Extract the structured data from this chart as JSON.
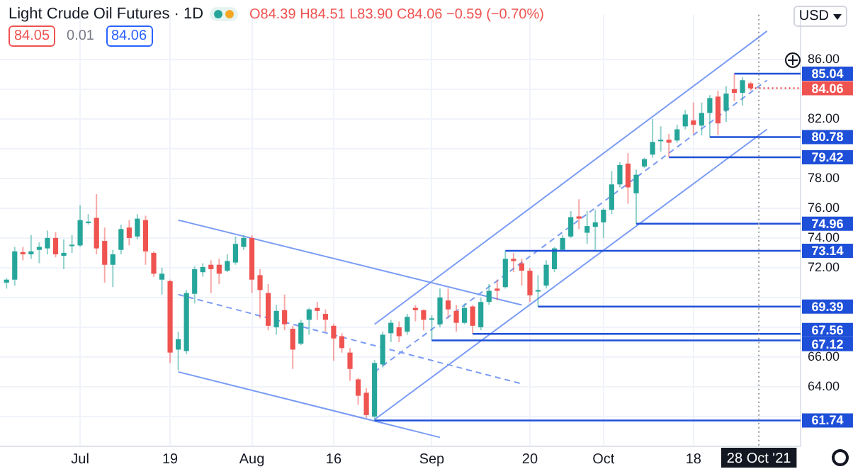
{
  "chart_data": {
    "type": "candlestick",
    "title": "Light Crude Oil Futures · 1D",
    "subtitle": "O84.39 H84.51 L83.90 C84.06 −0.59 (−0.70%)",
    "annotations": [
      "84.05",
      "0.01",
      "84.06",
      "USD"
    ],
    "categories": [
      null,
      null,
      null,
      null,
      null,
      null,
      null,
      null,
      null,
      "Jul",
      null,
      null,
      null,
      null,
      null,
      null,
      null,
      null,
      null,
      null,
      "19",
      null,
      null,
      null,
      null,
      null,
      null,
      null,
      null,
      null,
      "Aug",
      null,
      null,
      null,
      null,
      null,
      null,
      null,
      null,
      null,
      "16",
      null,
      null,
      null,
      null,
      null,
      null,
      null,
      null,
      null,
      null,
      null,
      "Sep",
      null,
      null,
      null,
      null,
      null,
      null,
      null,
      null,
      null,
      null,
      null,
      "20",
      null,
      null,
      null,
      null,
      null,
      null,
      null,
      null,
      "Oct",
      null,
      null,
      null,
      null,
      null,
      null,
      null,
      null,
      null,
      null,
      "18",
      null,
      null,
      null,
      null,
      null,
      null,
      null,
      "28 Oct '21",
      null,
      null,
      null,
      null,
      null
    ],
    "ohlc": [
      [
        71.0,
        71.3,
        70.6,
        71.2
      ],
      [
        71.2,
        73.4,
        70.8,
        73.1
      ],
      [
        73.05,
        73.4,
        72.5,
        72.9
      ],
      [
        72.9,
        74.2,
        72.6,
        73.1
      ],
      [
        73.2,
        73.7,
        72.3,
        73.4
      ],
      [
        73.3,
        74.5,
        72.9,
        74.0
      ],
      [
        74.0,
        74.4,
        72.7,
        72.9
      ],
      [
        72.8,
        73.9,
        71.9,
        73.0
      ],
      [
        73.45,
        74.2,
        73.0,
        73.55
      ],
      [
        73.5,
        76.2,
        73.4,
        75.2
      ],
      [
        75.0,
        75.6,
        74.9,
        75.1
      ],
      [
        75.35,
        76.95,
        72.9,
        73.3
      ],
      [
        73.8,
        74.7,
        71.0,
        72.2
      ],
      [
        72.2,
        73.2,
        70.7,
        72.9
      ],
      [
        73.2,
        74.9,
        72.9,
        74.6
      ],
      [
        74.7,
        75.2,
        73.5,
        74.0
      ],
      [
        74.1,
        75.6,
        73.9,
        75.3
      ],
      [
        75.2,
        75.5,
        72.2,
        73.1
      ],
      [
        73.0,
        73.1,
        71.4,
        71.6
      ],
      [
        71.2,
        72.0,
        70.2,
        71.6
      ],
      [
        71.1,
        71.2,
        65.6,
        66.3
      ],
      [
        66.5,
        67.7,
        65.1,
        67.2
      ],
      [
        66.4,
        70.5,
        66.2,
        70.3
      ],
      [
        70.25,
        72.1,
        69.6,
        71.9
      ],
      [
        71.7,
        72.3,
        71.4,
        72.05
      ],
      [
        72.2,
        72.5,
        70.3,
        71.9
      ],
      [
        72.2,
        72.6,
        70.9,
        71.6
      ],
      [
        71.8,
        72.9,
        71.7,
        72.45
      ],
      [
        72.35,
        74.1,
        72.2,
        73.6
      ],
      [
        73.4,
        74.2,
        73.2,
        74.0
      ],
      [
        74.0,
        74.2,
        70.3,
        71.2
      ],
      [
        71.5,
        71.9,
        68.6,
        70.5
      ],
      [
        70.3,
        70.9,
        67.8,
        68.1
      ],
      [
        68.0,
        69.5,
        67.5,
        69.1
      ],
      [
        69.15,
        70.2,
        67.8,
        68.2
      ],
      [
        67.9,
        68.1,
        65.2,
        66.5
      ],
      [
        66.9,
        68.5,
        66.8,
        68.3
      ],
      [
        68.5,
        69.3,
        67.5,
        69.2
      ],
      [
        69.3,
        69.7,
        68.5,
        69.1
      ],
      [
        68.9,
        69.2,
        67.7,
        68.5
      ],
      [
        68.1,
        68.25,
        65.75,
        67.25
      ],
      [
        67.4,
        67.6,
        66.3,
        66.6
      ],
      [
        66.3,
        66.6,
        64.4,
        65.2
      ],
      [
        64.5,
        64.6,
        62.8,
        63.4
      ],
      [
        63.6,
        63.9,
        61.9,
        62.1
      ],
      [
        62.0,
        65.8,
        61.74,
        65.6
      ],
      [
        65.5,
        67.7,
        65.3,
        67.5
      ],
      [
        67.6,
        68.5,
        67.0,
        68.3
      ],
      [
        68.0,
        68.4,
        67.0,
        67.4
      ],
      [
        67.7,
        68.9,
        67.5,
        68.7
      ],
      [
        69.3,
        69.5,
        68.4,
        69.15
      ],
      [
        69.15,
        69.2,
        67.8,
        68.5
      ],
      [
        68.55,
        68.8,
        67.12,
        68.6
      ],
      [
        68.2,
        70.6,
        68.0,
        70.0
      ],
      [
        69.8,
        70.6,
        68.6,
        69.2
      ],
      [
        69.1,
        69.5,
        67.7,
        68.3
      ],
      [
        68.3,
        69.6,
        68.2,
        69.3
      ],
      [
        69.4,
        69.5,
        67.56,
        68.1
      ],
      [
        68.0,
        70.0,
        67.8,
        69.7
      ],
      [
        69.7,
        70.9,
        69.5,
        70.45
      ],
      [
        70.6,
        71.2,
        69.8,
        70.45
      ],
      [
        70.7,
        73.14,
        70.6,
        72.6
      ],
      [
        72.6,
        73.0,
        71.7,
        72.45
      ],
      [
        72.3,
        72.6,
        70.8,
        71.8
      ],
      [
        71.8,
        72.0,
        69.7,
        70.15
      ],
      [
        70.4,
        71.5,
        69.39,
        70.5
      ],
      [
        70.8,
        72.5,
        70.6,
        72.2
      ],
      [
        71.9,
        73.4,
        71.7,
        73.3
      ],
      [
        73.2,
        74.2,
        73.1,
        74.0
      ],
      [
        74.1,
        75.8,
        74.0,
        75.4
      ],
      [
        75.45,
        76.6,
        74.6,
        75.3
      ],
      [
        74.35,
        75.8,
        73.6,
        74.8
      ],
      [
        74.75,
        75.9,
        73.2,
        75.05
      ],
      [
        75.05,
        76.0,
        74.0,
        75.9
      ],
      [
        75.9,
        78.5,
        75.6,
        77.6
      ],
      [
        77.6,
        79.1,
        77.4,
        78.9
      ],
      [
        79.0,
        79.7,
        76.3,
        77.4
      ],
      [
        77.0,
        78.6,
        74.96,
        78.25
      ],
      [
        78.8,
        79.4,
        78.7,
        79.3
      ],
      [
        79.6,
        82.0,
        79.4,
        80.45
      ],
      [
        80.5,
        81.5,
        79.8,
        80.6
      ],
      [
        80.6,
        81.0,
        79.42,
        80.4
      ],
      [
        80.55,
        81.6,
        80.4,
        81.3
      ],
      [
        81.5,
        82.6,
        81.3,
        82.3
      ],
      [
        81.9,
        83.1,
        81.0,
        81.6
      ],
      [
        81.55,
        83.1,
        80.9,
        82.4
      ],
      [
        82.4,
        83.6,
        80.78,
        83.4
      ],
      [
        83.5,
        83.9,
        80.9,
        81.7
      ],
      [
        82.55,
        84.2,
        81.8,
        83.7
      ],
      [
        84.0,
        85.04,
        83.2,
        83.75
      ],
      [
        83.75,
        84.8,
        82.9,
        84.6
      ],
      [
        84.39,
        84.51,
        83.9,
        84.06
      ],
      null,
      null,
      null,
      null,
      null,
      null
    ],
    "series": [
      {
        "type": "line",
        "color": "#7b9cf5",
        "values": [
          null,
          null,
          null,
          null,
          null,
          null,
          null,
          null,
          null,
          null,
          null,
          null,
          null,
          null,
          null,
          null,
          null,
          null,
          null,
          null,
          null,
          75.2,
          null,
          null,
          null,
          null,
          null,
          null,
          null,
          null,
          null,
          null,
          null,
          null,
          null,
          null,
          null,
          null,
          null,
          null,
          null,
          null,
          null,
          null,
          null,
          null,
          null,
          null,
          null,
          null,
          null,
          null,
          null,
          null,
          null,
          null,
          null,
          null,
          null,
          null,
          null,
          null,
          null,
          69.5,
          null,
          null,
          null,
          null,
          null,
          null,
          null,
          null,
          null,
          null,
          null,
          null,
          null,
          null,
          null,
          null,
          null,
          null,
          null,
          null,
          null,
          null,
          null,
          null,
          null,
          null,
          null,
          null,
          null,
          null,
          null,
          null,
          null,
          null
        ]
      },
      {
        "type": "line",
        "color": "#7b9cf5",
        "line_style": "dashed",
        "values": [
          null,
          null,
          null,
          null,
          null,
          null,
          null,
          null,
          null,
          null,
          null,
          null,
          null,
          null,
          null,
          null,
          null,
          null,
          null,
          null,
          null,
          70.2,
          null,
          null,
          null,
          null,
          null,
          null,
          null,
          null,
          null,
          null,
          null,
          null,
          null,
          null,
          null,
          null,
          null,
          null,
          null,
          null,
          null,
          null,
          null,
          null,
          null,
          null,
          null,
          null,
          null,
          null,
          null,
          null,
          null,
          null,
          null,
          null,
          null,
          null,
          null,
          null,
          null,
          64.2,
          null,
          null,
          null,
          null,
          null,
          null,
          null,
          null,
          null,
          null,
          null,
          null,
          null,
          null,
          null,
          null,
          null,
          null,
          null,
          null,
          null,
          null,
          null,
          null,
          null,
          null,
          null,
          null,
          null,
          null,
          null,
          null,
          null,
          null
        ]
      },
      {
        "type": "line",
        "color": "#7b9cf5",
        "values": [
          null,
          null,
          null,
          null,
          null,
          null,
          null,
          null,
          null,
          null,
          null,
          null,
          null,
          null,
          null,
          null,
          null,
          null,
          null,
          null,
          null,
          65.0,
          null,
          null,
          null,
          null,
          null,
          null,
          null,
          null,
          null,
          null,
          null,
          null,
          null,
          null,
          null,
          null,
          null,
          null,
          null,
          null,
          null,
          null,
          null,
          null,
          null,
          null,
          null,
          null,
          null,
          null,
          null,
          60.6,
          null,
          null,
          null,
          null,
          null,
          null,
          null,
          null,
          null,
          null,
          null,
          null,
          null,
          null,
          null,
          null,
          null,
          null,
          null,
          null,
          null,
          null,
          null,
          null,
          null,
          null,
          null,
          null,
          null,
          null,
          null,
          null,
          null,
          null,
          null,
          null,
          null,
          null,
          null,
          null,
          null,
          null,
          null,
          null
        ]
      },
      {
        "type": "line",
        "color": "#7b9cf5",
        "values": [
          null,
          null,
          null,
          null,
          null,
          null,
          null,
          null,
          null,
          null,
          null,
          null,
          null,
          null,
          null,
          null,
          null,
          null,
          null,
          null,
          null,
          null,
          null,
          null,
          null,
          null,
          null,
          null,
          null,
          null,
          null,
          null,
          null,
          null,
          null,
          null,
          null,
          null,
          null,
          null,
          null,
          null,
          null,
          null,
          null,
          68.2,
          null,
          null,
          null,
          null,
          null,
          null,
          null,
          null,
          null,
          null,
          null,
          null,
          null,
          null,
          null,
          null,
          null,
          null,
          null,
          null,
          null,
          null,
          null,
          null,
          null,
          null,
          null,
          null,
          null,
          null,
          null,
          null,
          null,
          null,
          null,
          null,
          null,
          null,
          null,
          null,
          null,
          null,
          null,
          null,
          null,
          null,
          null,
          87.9,
          null,
          null,
          null,
          null
        ]
      },
      {
        "type": "line",
        "color": "#7b9cf5",
        "line_style": "dashed",
        "values": [
          null,
          null,
          null,
          null,
          null,
          null,
          null,
          null,
          null,
          null,
          null,
          null,
          null,
          null,
          null,
          null,
          null,
          null,
          null,
          null,
          null,
          null,
          null,
          null,
          null,
          null,
          null,
          null,
          null,
          null,
          null,
          null,
          null,
          null,
          null,
          null,
          null,
          null,
          null,
          null,
          null,
          null,
          null,
          null,
          null,
          65.0,
          null,
          null,
          null,
          null,
          null,
          null,
          null,
          null,
          null,
          null,
          null,
          null,
          null,
          null,
          null,
          null,
          null,
          null,
          null,
          null,
          null,
          null,
          null,
          null,
          null,
          null,
          null,
          null,
          null,
          null,
          null,
          null,
          null,
          null,
          null,
          null,
          null,
          null,
          null,
          null,
          null,
          null,
          null,
          null,
          null,
          null,
          null,
          84.6,
          null,
          null,
          null,
          null
        ]
      },
      {
        "type": "line",
        "color": "#7b9cf5",
        "values": [
          null,
          null,
          null,
          null,
          null,
          null,
          null,
          null,
          null,
          null,
          null,
          null,
          null,
          null,
          null,
          null,
          null,
          null,
          null,
          null,
          null,
          null,
          null,
          null,
          null,
          null,
          null,
          null,
          null,
          null,
          null,
          null,
          null,
          null,
          null,
          null,
          null,
          null,
          null,
          null,
          null,
          null,
          null,
          null,
          null,
          61.8,
          null,
          null,
          null,
          null,
          null,
          null,
          null,
          null,
          null,
          null,
          null,
          null,
          null,
          null,
          null,
          null,
          null,
          null,
          null,
          null,
          null,
          null,
          null,
          null,
          null,
          null,
          null,
          null,
          null,
          null,
          null,
          null,
          null,
          null,
          null,
          null,
          null,
          null,
          null,
          null,
          null,
          null,
          null,
          null,
          null,
          null,
          null,
          81.3,
          null,
          null,
          null,
          null
        ]
      }
    ],
    "ref_lines": [
      {
        "axis": "x",
        "value": "28 Oct '21",
        "color": "#9598a1",
        "line_style": "dotted"
      },
      {
        "axis": "y",
        "value": 85.04,
        "label": "85.04",
        "color": "#1e4fd8"
      },
      {
        "axis": "y",
        "value": 84.06,
        "label": "84.06",
        "color": "#ef5350",
        "line_style": "dotted"
      },
      {
        "axis": "y",
        "value": 80.78,
        "label": "80.78",
        "color": "#1e4fd8"
      },
      {
        "axis": "y",
        "value": 79.42,
        "label": "79.42",
        "color": "#1e4fd8"
      },
      {
        "axis": "y",
        "value": 74.96,
        "label": "74.96",
        "color": "#1e4fd8"
      },
      {
        "axis": "y",
        "value": 73.14,
        "label": "73.14",
        "color": "#1e4fd8"
      },
      {
        "axis": "y",
        "value": 69.39,
        "label": "69.39",
        "color": "#1e4fd8"
      },
      {
        "axis": "y",
        "value": 67.56,
        "label": "67.56",
        "color": "#1e4fd8"
      },
      {
        "axis": "y",
        "value": 67.12,
        "label": "67.12",
        "color": "#1e4fd8"
      },
      {
        "axis": "y",
        "value": 61.74,
        "label": "61.74",
        "color": "#1e4fd8"
      }
    ],
    "ylim": [
      60,
      89
    ],
    "yticks": [
      {
        "value": 62,
        "label": null
      },
      {
        "value": 64,
        "label": "64.00"
      },
      {
        "value": 66,
        "label": "66.00"
      },
      {
        "value": 68,
        "label": null
      },
      {
        "value": 70,
        "label": null
      },
      {
        "value": 72,
        "label": "72.00"
      },
      {
        "value": 74,
        "label": "74.00"
      },
      {
        "value": 76,
        "label": "76.00"
      },
      {
        "value": 78,
        "label": "78.00"
      },
      {
        "value": 80,
        "label": null
      },
      {
        "value": 82,
        "label": "82.00"
      },
      {
        "value": 84,
        "label": null
      },
      {
        "value": 86,
        "label": "86.00"
      }
    ],
    "grid": true
  }
}
